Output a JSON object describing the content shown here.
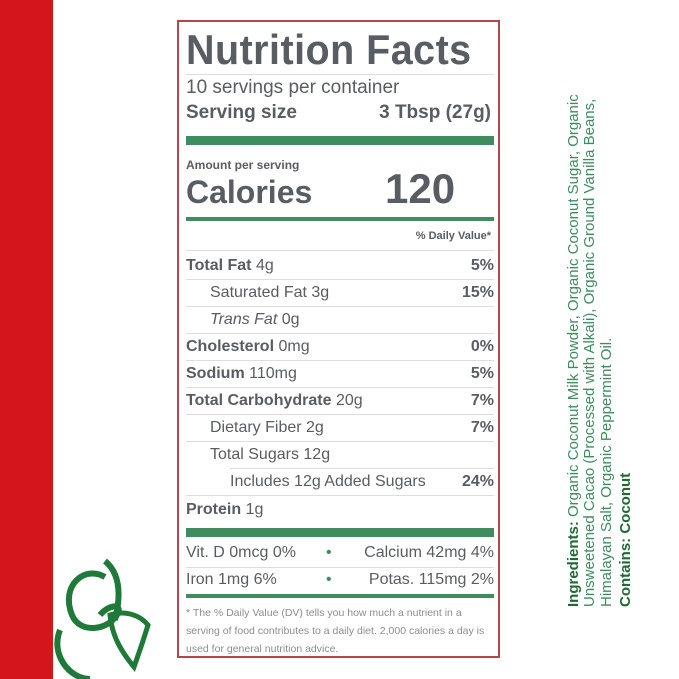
{
  "label": {
    "title": "Nutrition Facts",
    "servings": "10 servings per container",
    "serving_size_label": "Serving size",
    "serving_size_value": "3 Tbsp (27g)",
    "amount_per_serving": "Amount per serving",
    "calories_label": "Calories",
    "calories_value": "120",
    "dv_header": "% Daily Value*",
    "rows": [
      {
        "name": "Total Fat",
        "amount": "4g",
        "dv": "5%"
      },
      {
        "name": "Saturated Fat",
        "amount": "3g",
        "dv": "15%"
      },
      {
        "name": "Trans Fat",
        "amount": "0g",
        "dv": ""
      },
      {
        "name": "Cholesterol",
        "amount": "0mg",
        "dv": "0%"
      },
      {
        "name": "Sodium",
        "amount": "110mg",
        "dv": "5%"
      },
      {
        "name": "Total Carbohydrate",
        "amount": "20g",
        "dv": "7%"
      },
      {
        "name": "Dietary Fiber",
        "amount": "2g",
        "dv": "7%"
      },
      {
        "name": "Total Sugars",
        "amount": "12g",
        "dv": ""
      },
      {
        "name": "Includes 12g Added Sugars",
        "amount": "",
        "dv": "24%"
      },
      {
        "name": "Protein",
        "amount": "1g",
        "dv": ""
      }
    ],
    "vitamins": [
      {
        "left": "Vit. D 0mcg 0%",
        "right": "Calcium 42mg 4%"
      },
      {
        "left": "Iron 1mg 6%",
        "right": "Potas. 115mg 2%"
      }
    ],
    "bullet": "•",
    "footnote": "* The % Daily Value (DV) tells you how much a nutrient in a serving of food contributes to a daily diet. 2,000 calories a day is used for general nutrition advice."
  },
  "ingredients": {
    "heading": "Ingredients:",
    "text": "Organic Coconut Milk Powder, Organic Coconut Sugar, Organic Unsweetened Cacao (Processed with Alkali), Organic Ground Vanilla Beans, Himalayan Salt, Organic Peppermint Oil.",
    "contains": "Contains: Coconut"
  },
  "colors": {
    "brand_red": "#d3151c",
    "green": "#3f8c5f",
    "text": "#585d63",
    "border": "#b4474c"
  }
}
